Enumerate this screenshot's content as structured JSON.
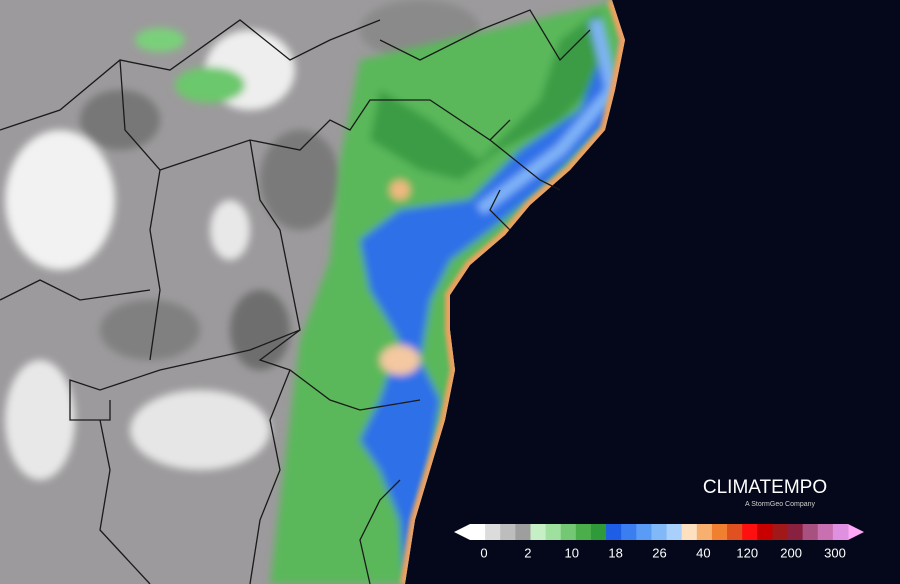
{
  "branding": {
    "logo": "CLIMATEMPO",
    "tagline": "A StormGeo Company"
  },
  "legend": {
    "ticks": [
      0,
      2,
      10,
      18,
      26,
      40,
      120,
      200,
      300
    ]
  }
}
